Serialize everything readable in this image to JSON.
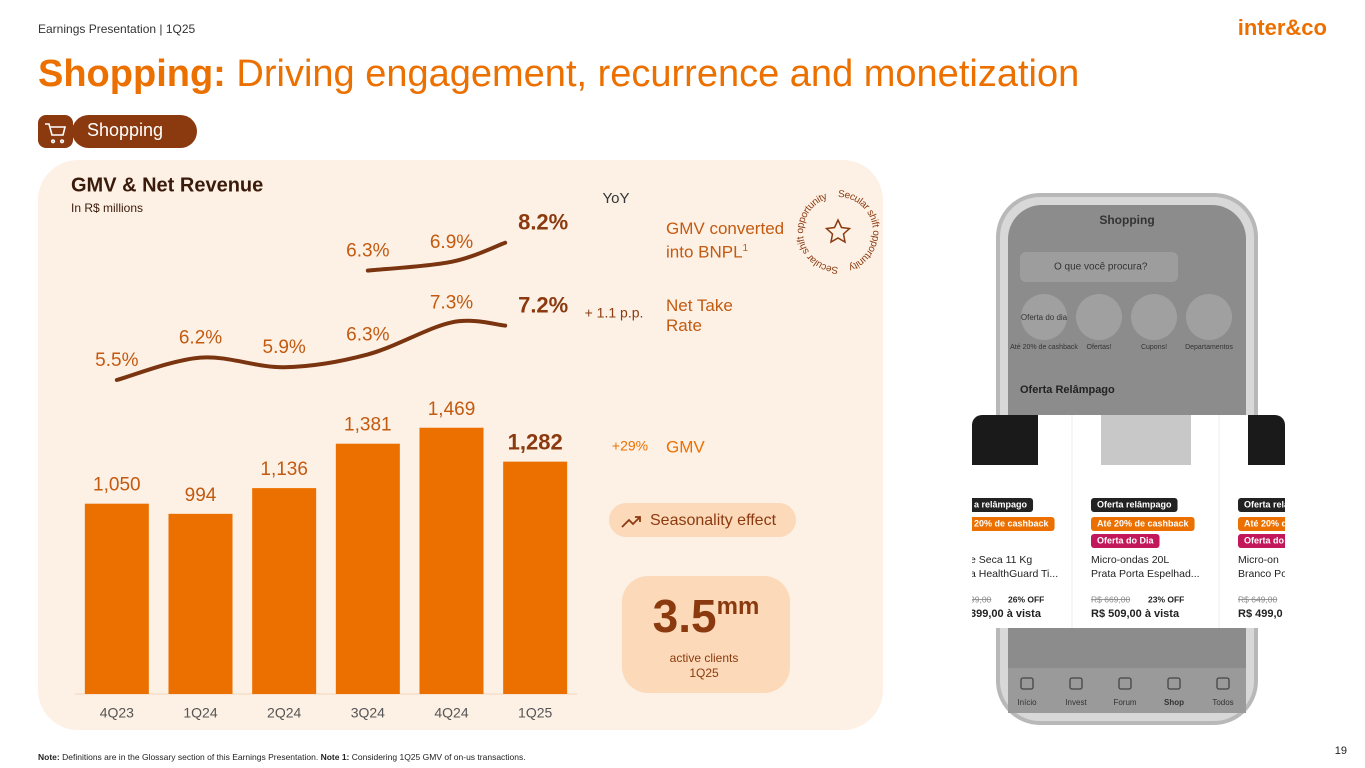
{
  "header": {
    "label": "Earnings Presentation | 1Q25",
    "logo": "inter&co",
    "title_bold": "Shopping:",
    "title_rest": "Driving engagement, recurrence and monetization",
    "tag": "Shopping"
  },
  "chart_data": {
    "type": "bar",
    "title": "GMV & Net Revenue",
    "subtitle": "In R$ millions",
    "name": "GMV",
    "yoy_header": "YoY",
    "yoy": "+29%",
    "categories": [
      "4Q23",
      "1Q24",
      "2Q24",
      "3Q24",
      "4Q24",
      "1Q25"
    ],
    "values": [
      1050,
      994,
      1136,
      1381,
      1469,
      1282
    ],
    "value_labels": [
      "1,050",
      "994",
      "1,136",
      "1,381",
      "1,469",
      "1,282"
    ],
    "color": "#ec7000",
    "ylim": [
      0,
      1600
    ],
    "lines": [
      {
        "name": "GMV converted into BNPL",
        "note_ref": "1",
        "color": "#7a3510",
        "values": [
          null,
          null,
          null,
          6.3,
          6.9,
          8.2
        ],
        "value_labels": [
          null,
          null,
          null,
          "6.3%",
          "6.9%",
          "8.2%"
        ],
        "ylim": [
          6,
          9
        ]
      },
      {
        "name": "Net Take Rate",
        "yoy": "+ 1.1 p.p.",
        "color": "#7a3510",
        "values": [
          5.5,
          6.2,
          5.9,
          6.3,
          7.3,
          7.2
        ],
        "value_labels": [
          "5.5%",
          "6.2%",
          "5.9%",
          "6.3%",
          "7.3%",
          "7.2%"
        ],
        "ylim": [
          5,
          8
        ]
      }
    ]
  },
  "stamp": "Secular shift opportunity",
  "seasonality": "Seasonality effect",
  "clients": {
    "value": "3.5",
    "unit": "mm",
    "label": "active clients",
    "period": "1Q25"
  },
  "phone": {
    "title": "Shopping",
    "search": "O que você procura?",
    "badge": "Oferta do dia",
    "shortcuts": [
      "Até 20% de cashback",
      "Ofertas!",
      "Cupons!",
      "Departamentos"
    ],
    "section": "Oferta Relâmpago",
    "cards": [
      {
        "lines": [
          "a relâmpago",
          "20% de cashback",
          "e Seca 11 Kg",
          "a HealthGuard Ti...",
          "99,00",
          "26% OFF",
          "399,00 à vista"
        ]
      },
      {
        "lines": [
          "Oferta relâmpago",
          "Até 20% de cashback",
          "Oferta do Dia",
          "Micro-ondas 20L",
          "Prata Porta Espelhad...",
          "R$ 669,00",
          "23% OFF",
          "R$ 509,00 à vista"
        ]
      },
      {
        "lines": [
          "Oferta rela",
          "Até 20% d",
          "Oferta do",
          "Micro-on",
          "Branco Po",
          "R$ 649,00",
          "R$ 499,0"
        ]
      }
    ],
    "nav": [
      "Início",
      "Invest",
      "Forum",
      "Shop",
      "Todos"
    ]
  },
  "footer": {
    "note_label": "Note:",
    "note": "Definitions are in the Glossary section of this Earnings Presentation.",
    "note1_label": "Note 1:",
    "note1": "Considering 1Q25 GMV of on-us transactions.",
    "page": "19"
  }
}
